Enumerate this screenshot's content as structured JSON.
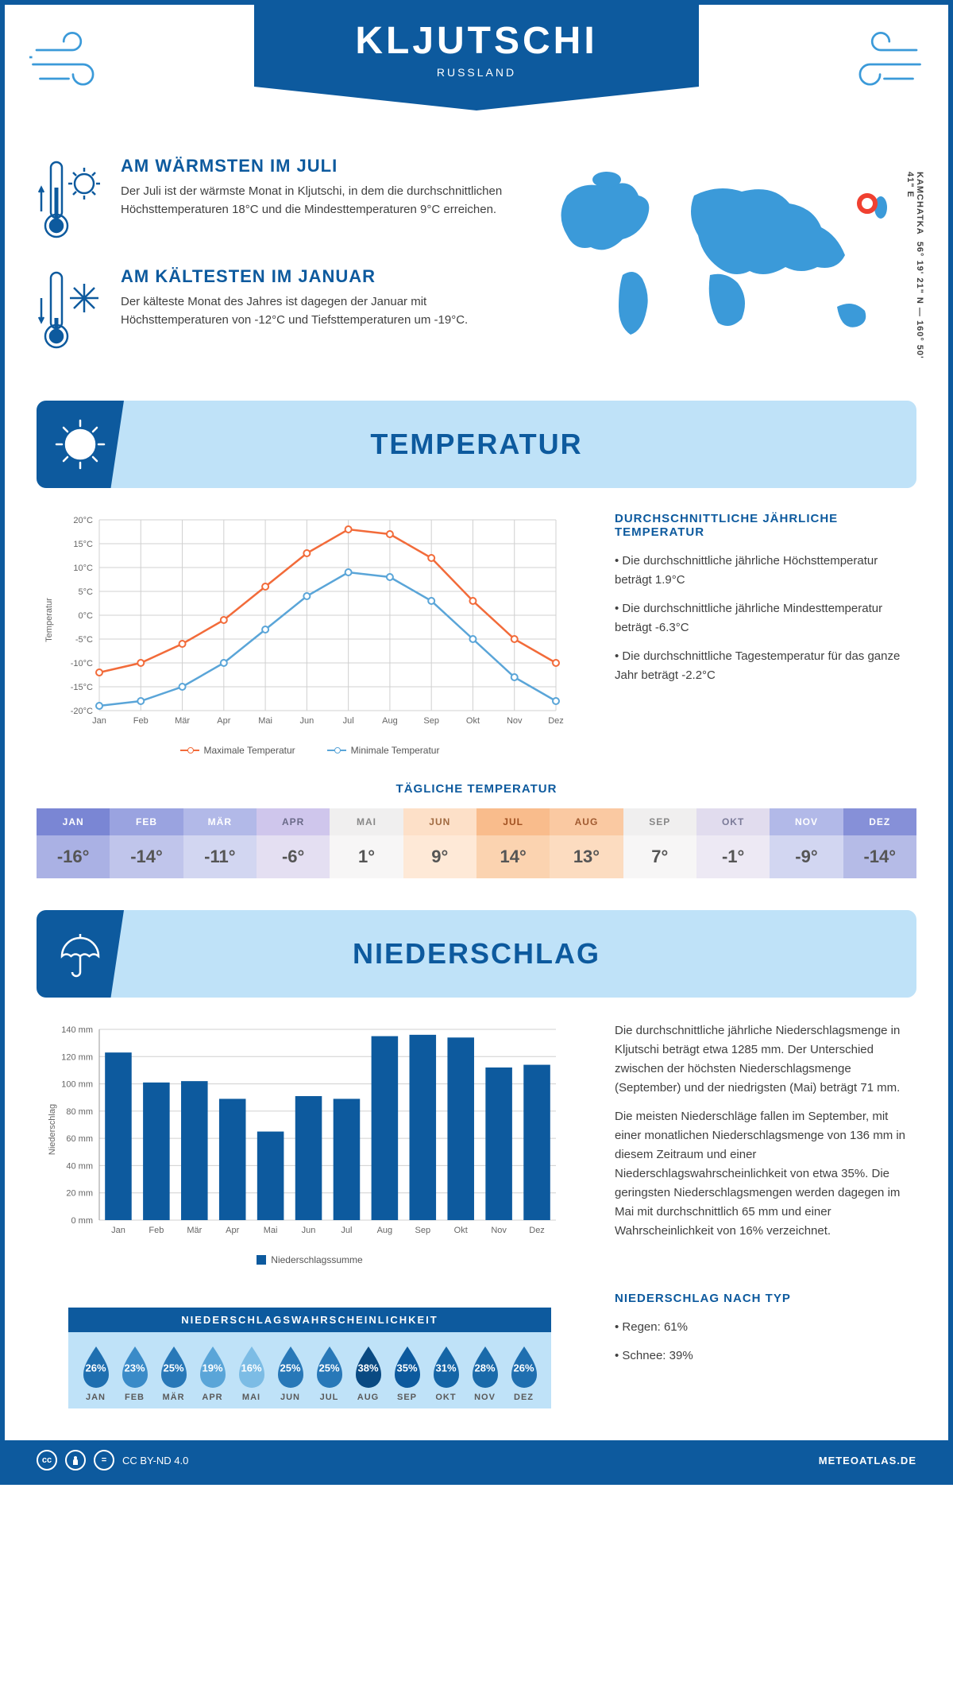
{
  "header": {
    "title": "KLJUTSCHI",
    "subtitle": "RUSSLAND",
    "coords_line1": "KAMCHATKA",
    "coords_line2": "56° 19' 21\" N — 160° 50' 41\" E"
  },
  "colors": {
    "primary": "#0d5a9e",
    "light_blue": "#bfe2f8",
    "accent_blue": "#3b9ad9",
    "orange": "#f26b3a",
    "line_blue": "#5aa5d8",
    "grid": "#d0d0d0"
  },
  "warmest": {
    "title": "AM WÄRMSTEN IM JULI",
    "text": "Der Juli ist der wärmste Monat in Kljutschi, in dem die durchschnittlichen Höchsttemperaturen 18°C und die Mindesttemperaturen 9°C erreichen."
  },
  "coldest": {
    "title": "AM KÄLTESTEN IM JANUAR",
    "text": "Der kälteste Monat des Jahres ist dagegen der Januar mit Höchsttemperaturen von -12°C und Tiefsttemperaturen um -19°C."
  },
  "temp_section": {
    "title": "TEMPERATUR",
    "side_title": "DURCHSCHNITTLICHE JÄHRLICHE TEMPERATUR",
    "bullet1": "• Die durchschnittliche jährliche Höchsttemperatur beträgt 1.9°C",
    "bullet2": "• Die durchschnittliche jährliche Mindesttemperatur beträgt -6.3°C",
    "bullet3": "• Die durchschnittliche Tagestemperatur für das ganze Jahr beträgt -2.2°C",
    "legend_max": "Maximale Temperatur",
    "legend_min": "Minimale Temperatur",
    "y_label": "Temperatur"
  },
  "temp_chart": {
    "months": [
      "Jan",
      "Feb",
      "Mär",
      "Apr",
      "Mai",
      "Jun",
      "Jul",
      "Aug",
      "Sep",
      "Okt",
      "Nov",
      "Dez"
    ],
    "max_series": [
      -12,
      -10,
      -6,
      -1,
      6,
      13,
      18,
      17,
      12,
      3,
      -5,
      -10
    ],
    "min_series": [
      -19,
      -18,
      -15,
      -10,
      -3,
      4,
      9,
      8,
      3,
      -5,
      -13,
      -18
    ],
    "ylim": [
      -20,
      20
    ],
    "yticks": [
      -20,
      -15,
      -10,
      -5,
      0,
      5,
      10,
      15,
      20
    ],
    "max_color": "#f26b3a",
    "min_color": "#5aa5d8"
  },
  "daily_temp": {
    "title": "TÄGLICHE TEMPERATUR",
    "months": [
      "JAN",
      "FEB",
      "MÄR",
      "APR",
      "MAI",
      "JUN",
      "JUL",
      "AUG",
      "SEP",
      "OKT",
      "NOV",
      "DEZ"
    ],
    "values": [
      "-16°",
      "-14°",
      "-11°",
      "-6°",
      "1°",
      "9°",
      "14°",
      "13°",
      "7°",
      "-1°",
      "-9°",
      "-14°"
    ],
    "head_colors": [
      "#7a86d4",
      "#9aa3e0",
      "#b2b9e8",
      "#cfc6ec",
      "#f0efef",
      "#fde0c8",
      "#f9bc8c",
      "#fac9a2",
      "#f0efef",
      "#e1dcee",
      "#b2b9e8",
      "#8690d8"
    ],
    "val_colors": [
      "#aab1e4",
      "#c0c5eb",
      "#d2d6f1",
      "#e4dff2",
      "#f7f6f6",
      "#fee9d7",
      "#fbd3b0",
      "#fcdcc0",
      "#f7f6f6",
      "#ede9f4",
      "#d2d6f1",
      "#b5bbe7"
    ],
    "text_colors": [
      "#fff",
      "#fff",
      "#fff",
      "#6a6a88",
      "#888",
      "#a06a40",
      "#a05020",
      "#a05a30",
      "#888",
      "#7a7a98",
      "#fff",
      "#fff"
    ]
  },
  "precip_section": {
    "title": "NIEDERSCHLAG",
    "y_label": "Niederschlag",
    "legend": "Niederschlagssumme",
    "para1": "Die durchschnittliche jährliche Niederschlagsmenge in Kljutschi beträgt etwa 1285 mm. Der Unterschied zwischen der höchsten Niederschlagsmenge (September) und der niedrigsten (Mai) beträgt 71 mm.",
    "para2": "Die meisten Niederschläge fallen im September, mit einer monatlichen Niederschlagsmenge von 136 mm in diesem Zeitraum und einer Niederschlagswahrscheinlichkeit von etwa 35%. Die geringsten Niederschlagsmengen werden dagegen im Mai mit durchschnittlich 65 mm und einer Wahrscheinlichkeit von 16% verzeichnet.",
    "type_title": "NIEDERSCHLAG NACH TYP",
    "type1": "• Regen: 61%",
    "type2": "• Schnee: 39%"
  },
  "precip_chart": {
    "months": [
      "Jan",
      "Feb",
      "Mär",
      "Apr",
      "Mai",
      "Jun",
      "Jul",
      "Aug",
      "Sep",
      "Okt",
      "Nov",
      "Dez"
    ],
    "values": [
      123,
      101,
      102,
      89,
      65,
      91,
      89,
      135,
      136,
      134,
      112,
      114
    ],
    "ylim": [
      0,
      140
    ],
    "yticks": [
      0,
      20,
      40,
      60,
      80,
      100,
      120,
      140
    ],
    "bar_color": "#0d5a9e"
  },
  "prob": {
    "title": "NIEDERSCHLAGSWAHRSCHEINLICHKEIT",
    "months": [
      "JAN",
      "FEB",
      "MÄR",
      "APR",
      "MAI",
      "JUN",
      "JUL",
      "AUG",
      "SEP",
      "OKT",
      "NOV",
      "DEZ"
    ],
    "values": [
      "26%",
      "23%",
      "25%",
      "19%",
      "16%",
      "25%",
      "25%",
      "38%",
      "35%",
      "31%",
      "28%",
      "26%"
    ],
    "colors": [
      "#1f6fb0",
      "#3a8bc8",
      "#2878b8",
      "#5aa5d8",
      "#7cbce5",
      "#2878b8",
      "#2878b8",
      "#0a4a82",
      "#0d5a9e",
      "#1565a6",
      "#1a6aaa",
      "#1f6fb0"
    ]
  },
  "footer": {
    "license": "CC BY-ND 4.0",
    "site": "METEOATLAS.DE"
  }
}
